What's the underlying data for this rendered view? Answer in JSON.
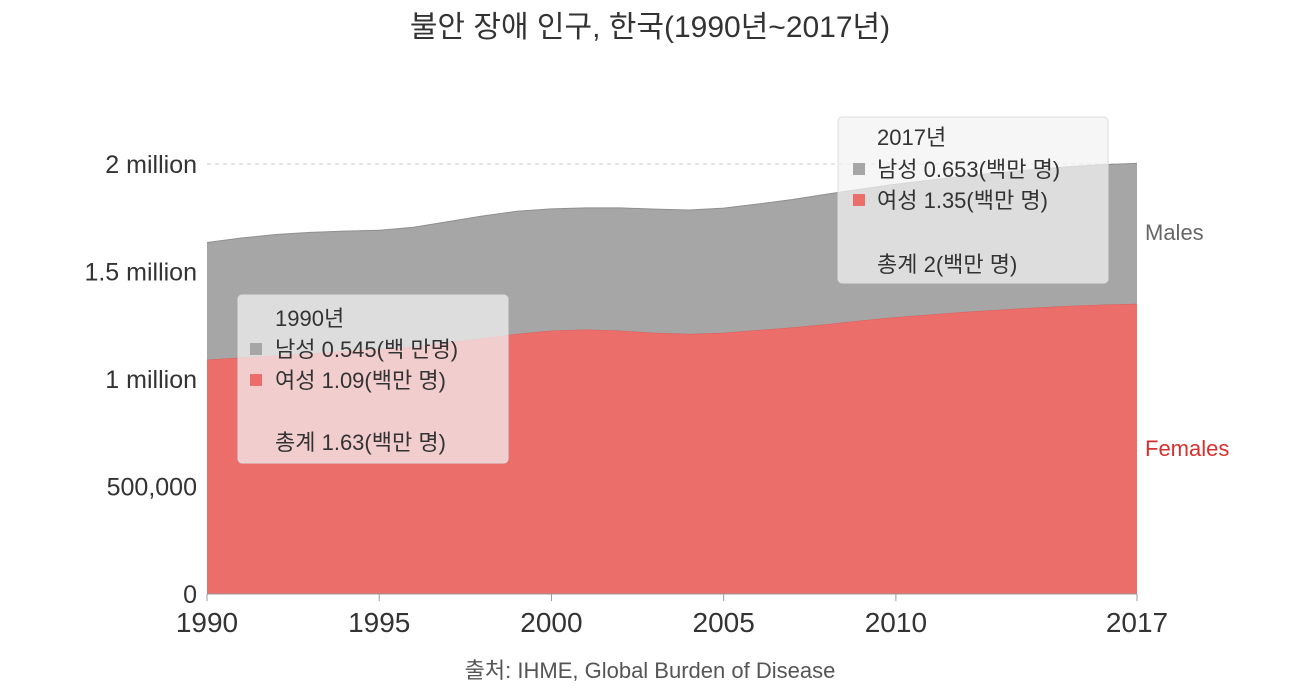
{
  "chart_data": {
    "type": "area",
    "stacked": true,
    "title": "불안 장애 인구, 한국(1990년~2017년)",
    "source": "출처: IHME, Global Burden of Disease",
    "x": [
      1990,
      1991,
      1992,
      1993,
      1994,
      1995,
      1996,
      1997,
      1998,
      1999,
      2000,
      2001,
      2002,
      2003,
      2004,
      2005,
      2006,
      2007,
      2008,
      2009,
      2010,
      2011,
      2012,
      2013,
      2014,
      2015,
      2016,
      2017
    ],
    "x_ticks": [
      1990,
      1995,
      2000,
      2005,
      2010,
      2017
    ],
    "x_tick_labels": [
      "1990",
      "1995",
      "2000",
      "2005",
      "2010",
      "2017"
    ],
    "y_ticks": [
      0,
      500000,
      1000000,
      1500000,
      2000000
    ],
    "y_tick_labels": [
      "0",
      "500,000",
      "1 million",
      "1.5 million",
      "2 million"
    ],
    "ylim": [
      0,
      2000000
    ],
    "grid": true,
    "series": [
      {
        "name": "Females",
        "label": "Females",
        "color": "#eb6e6b",
        "values": [
          1090000,
          1100000,
          1110000,
          1120000,
          1130000,
          1140000,
          1150000,
          1170000,
          1190000,
          1210000,
          1225000,
          1230000,
          1225000,
          1215000,
          1210000,
          1215000,
          1228000,
          1240000,
          1255000,
          1272000,
          1288000,
          1300000,
          1312000,
          1322000,
          1332000,
          1340000,
          1346000,
          1350000
        ]
      },
      {
        "name": "Males",
        "label": "Males",
        "color": "#a6a6a6",
        "values": [
          545000,
          556000,
          562000,
          562000,
          558000,
          552000,
          556000,
          562000,
          568000,
          570000,
          566000,
          566000,
          571000,
          575000,
          576000,
          580000,
          586000,
          595000,
          605000,
          612000,
          618000,
          625000,
          632000,
          638000,
          642000,
          647000,
          651000,
          653000
        ]
      }
    ],
    "tooltips": [
      {
        "year_label": "1990년",
        "male_label": "남성 0.545(백 만명)",
        "female_label": "여성 1.09(백만 명)",
        "total_label": "총계 1.63(백만 명)"
      },
      {
        "year_label": "2017년",
        "male_label": "남성 0.653(백만 명)",
        "female_label": "여성 1.35(백만 명)",
        "total_label": "총계 2(백만 명)"
      }
    ]
  }
}
